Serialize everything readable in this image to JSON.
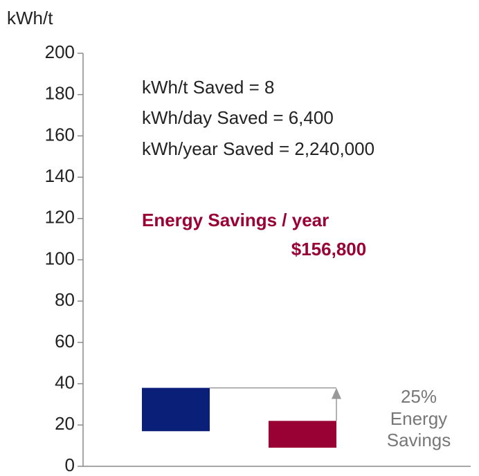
{
  "chart_data": {
    "type": "floating_bar",
    "y_label": "kWh/t",
    "categories": [
      null,
      null
    ],
    "low": [
      17,
      9
    ],
    "high": [
      38,
      22
    ],
    "colors": [
      "#0a1f78",
      "#990033"
    ],
    "ylim": [
      0,
      200
    ],
    "yticks": [
      0,
      20,
      40,
      60,
      80,
      100,
      120,
      140,
      160,
      180,
      200
    ],
    "notes": [
      "kWh/t Saved = 8",
      "kWh/day Saved = 6,400",
      "kWh/year Saved = 2,240,000"
    ],
    "highlight": {
      "title": "Energy Savings / year",
      "value": "$156,800",
      "color": "#990033"
    },
    "savings_label": [
      "25%",
      "Energy",
      "Savings"
    ]
  }
}
